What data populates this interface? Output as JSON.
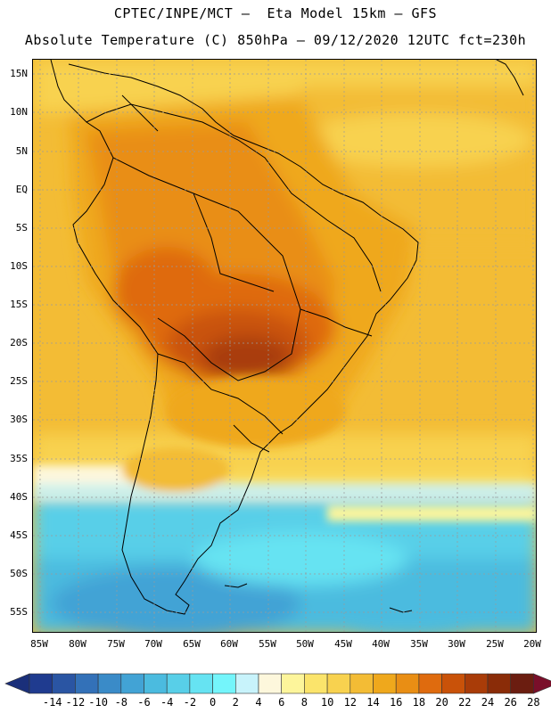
{
  "header": {
    "line1": "CPTEC/INPE/MCT –  Eta Model 15km – GFS",
    "line2": "Absolute Temperature (C) 850hPa – 09/12/2020 12UTC fct=230h"
  },
  "map": {
    "lon_range": [
      -86,
      -19
    ],
    "lat_range": [
      -58,
      17
    ],
    "lat_labels": [
      "15N",
      "10N",
      "5N",
      "EQ",
      "5S",
      "10S",
      "15S",
      "20S",
      "25S",
      "30S",
      "35S",
      "40S",
      "45S",
      "50S",
      "55S"
    ],
    "lon_labels": [
      "85W",
      "80W",
      "75W",
      "70W",
      "65W",
      "60W",
      "55W",
      "50W",
      "45W",
      "40W",
      "35W",
      "30W",
      "25W",
      "20W"
    ]
  },
  "colorbar": {
    "labels": [
      "-14",
      "-12",
      "-10",
      "-8",
      "-6",
      "-4",
      "-2",
      "0",
      "2",
      "4",
      "6",
      "8",
      "10",
      "12",
      "14",
      "16",
      "18",
      "20",
      "22",
      "24",
      "26",
      "28"
    ],
    "colors": [
      "#1f3b8f",
      "#2a55a3",
      "#3371b8",
      "#3a8bc8",
      "#42a3d5",
      "#4bbbdf",
      "#58cfe8",
      "#66e3f2",
      "#74f5fb",
      "#c8f3fb",
      "#fdf7dc",
      "#fdf59b",
      "#fbe46b",
      "#f8d24f",
      "#f3bc35",
      "#efa81c",
      "#e98e14",
      "#df6b0e",
      "#c95209",
      "#a93c08",
      "#8a2c08",
      "#6b1d10"
    ],
    "under_color": "#1a2f7a",
    "over_color": "#7a0f2a"
  }
}
